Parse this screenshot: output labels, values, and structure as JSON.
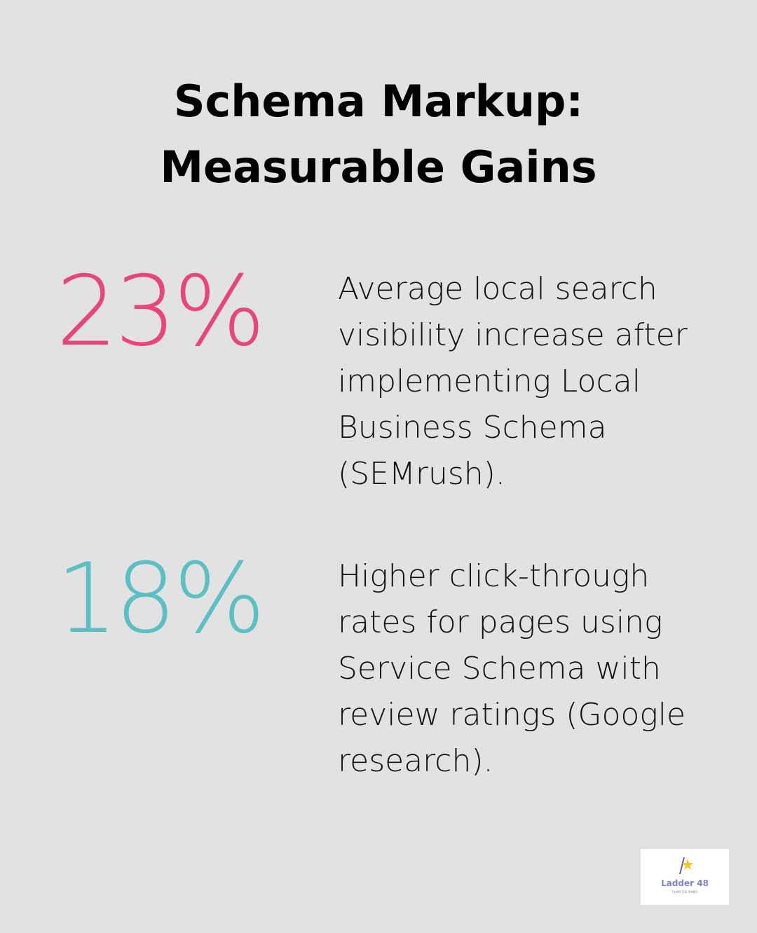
{
  "header": {
    "title_lines": [
      "Schema Markup:",
      "Measurable Gains"
    ]
  },
  "stats": [
    {
      "value": "23%",
      "color": "#e8457a",
      "description": "Average local search visibility increase after implementing Local Business Schema (SEMrush)."
    },
    {
      "value": "18%",
      "color": "#5bbfc4",
      "description": "Higher click-through rates for pages using Service Schema with review ratings (Google research)."
    }
  ],
  "logo": {
    "name": "Ladder 48",
    "tagline": "CLIMB THE RANKS"
  }
}
